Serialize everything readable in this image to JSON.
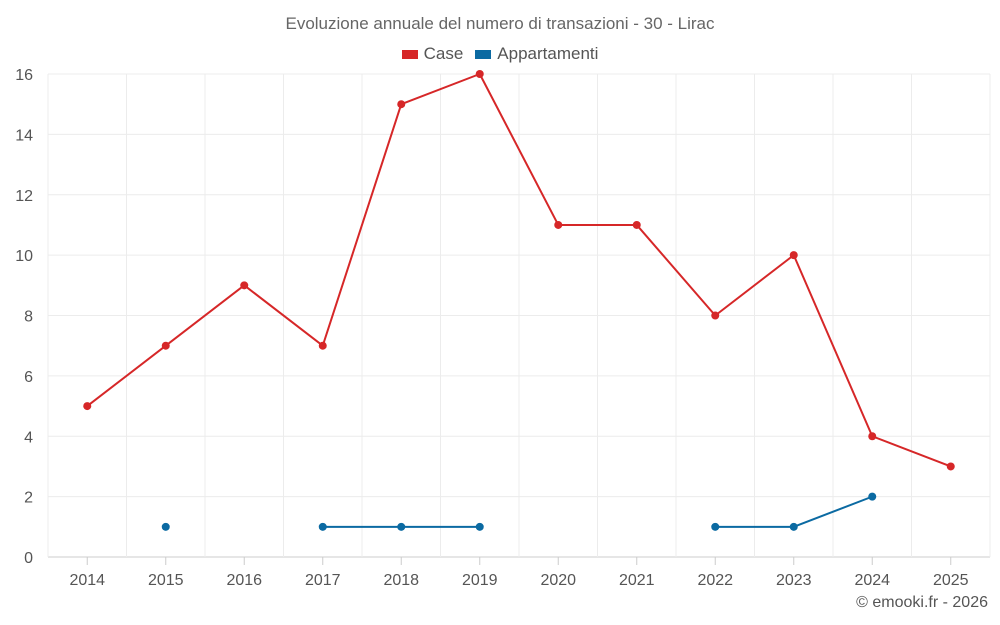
{
  "chart_data": {
    "type": "line",
    "title": "Evoluzione annuale del numero di transazioni - 30 - Lirac",
    "xlabel": "",
    "ylabel": "",
    "categories": [
      "2014",
      "2015",
      "2016",
      "2017",
      "2018",
      "2019",
      "2020",
      "2021",
      "2022",
      "2023",
      "2024",
      "2025"
    ],
    "ylim": [
      0,
      16
    ],
    "yticks": [
      0,
      2,
      4,
      6,
      8,
      10,
      12,
      14,
      16
    ],
    "grid": true,
    "legend_position": "top-center",
    "series": [
      {
        "name": "Case",
        "color": "#d62728",
        "values": [
          5,
          7,
          9,
          7,
          15,
          16,
          11,
          11,
          8,
          10,
          4,
          3
        ]
      },
      {
        "name": "Appartamenti",
        "color": "#0b6aa2",
        "values": [
          null,
          1,
          null,
          1,
          1,
          1,
          null,
          null,
          1,
          1,
          2,
          null
        ]
      }
    ]
  },
  "footer": {
    "credit": "© emooki.fr - 2026"
  }
}
